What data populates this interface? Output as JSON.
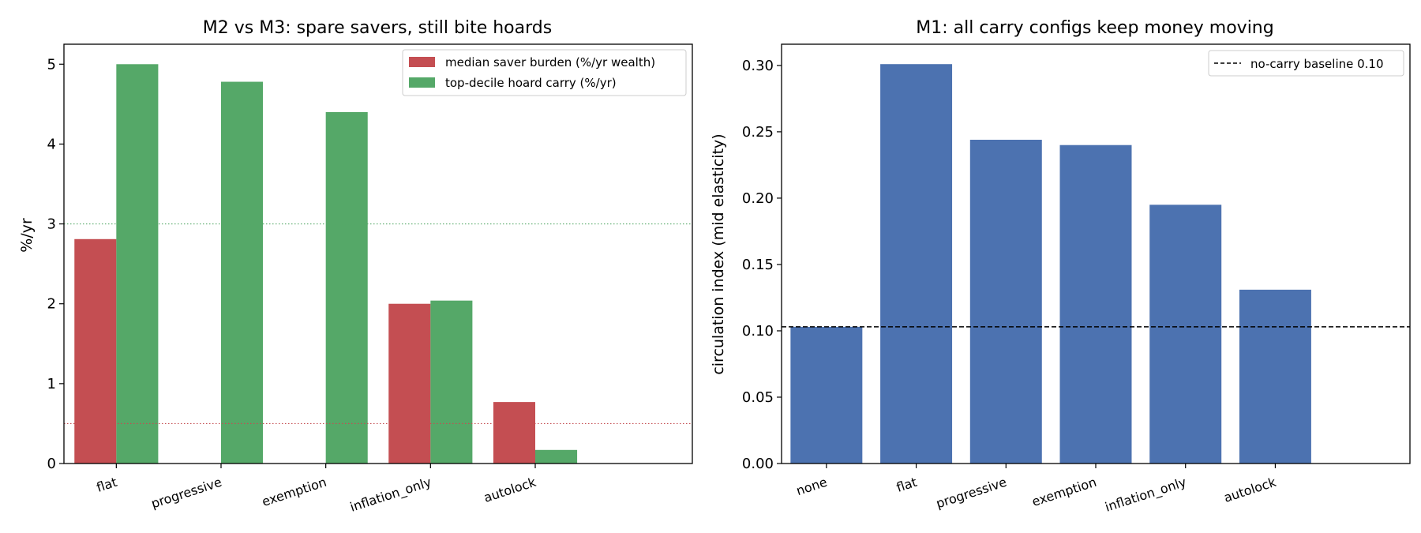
{
  "colors": {
    "saver": "#c44e52",
    "hoard": "#55a868",
    "circulation": "#4c72b0",
    "baseline": "#000000"
  },
  "chart_data": [
    {
      "type": "bar",
      "title": "M2 vs M3: spare savers, still bite hoards",
      "ylabel": "%/yr",
      "xlabel": "",
      "categories": [
        "flat",
        "progressive",
        "exemption",
        "inflation_only",
        "autolock"
      ],
      "series": [
        {
          "name": "median saver burden (%/yr wealth)",
          "color": "#c44e52",
          "values": [
            2.81,
            0.0,
            0.0,
            2.0,
            0.77
          ]
        },
        {
          "name": "top-decile hoard carry (%/yr)",
          "color": "#55a868",
          "values": [
            5.0,
            4.78,
            4.4,
            2.04,
            0.17
          ]
        }
      ],
      "reference_lines": [
        {
          "y": 3.0,
          "color": "#55a868",
          "style": "dotted"
        },
        {
          "y": 0.5,
          "color": "#c44e52",
          "style": "dotted"
        }
      ],
      "ylim": [
        0,
        5.25
      ],
      "yticks": [
        "0",
        "1",
        "2",
        "3",
        "4",
        "5"
      ],
      "ytick_values": [
        0,
        1,
        2,
        3,
        4,
        5
      ],
      "legend_position": "top-right",
      "grid": false
    },
    {
      "type": "bar",
      "title": "M1: all carry configs keep money moving",
      "ylabel": "circulation index (mid elasticity)",
      "xlabel": "",
      "categories": [
        "none",
        "flat",
        "progressive",
        "exemption",
        "inflation_only",
        "autolock"
      ],
      "series": [
        {
          "color": "#4c72b0",
          "values": [
            0.103,
            0.301,
            0.244,
            0.24,
            0.195,
            0.131
          ]
        }
      ],
      "reference_lines": [
        {
          "y": 0.103,
          "color": "#000000",
          "style": "dashed",
          "label": "no-carry baseline 0.10"
        }
      ],
      "ylim": [
        0,
        0.316
      ],
      "yticks": [
        "0.00",
        "0.05",
        "0.10",
        "0.15",
        "0.20",
        "0.25",
        "0.30"
      ],
      "ytick_values": [
        0,
        0.05,
        0.1,
        0.15,
        0.2,
        0.25,
        0.3
      ],
      "legend_position": "top-right",
      "grid": false
    }
  ]
}
